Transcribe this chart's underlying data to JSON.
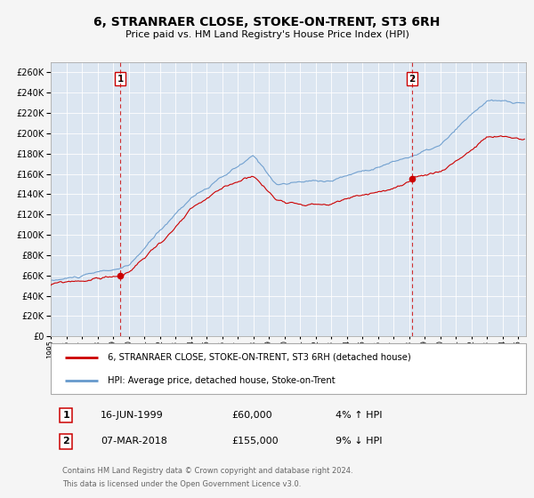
{
  "title_line1": "6, STRANRAER CLOSE, STOKE-ON-TRENT, ST3 6RH",
  "title_line2": "Price paid vs. HM Land Registry's House Price Index (HPI)",
  "ylim": [
    0,
    270000
  ],
  "xlim_start": 1995.0,
  "xlim_end": 2025.5,
  "ytick_values": [
    0,
    20000,
    40000,
    60000,
    80000,
    100000,
    120000,
    140000,
    160000,
    180000,
    200000,
    220000,
    240000,
    260000
  ],
  "ytick_labels": [
    "£0",
    "£20K",
    "£40K",
    "£60K",
    "£80K",
    "£100K",
    "£120K",
    "£140K",
    "£160K",
    "£180K",
    "£200K",
    "£220K",
    "£240K",
    "£260K"
  ],
  "transaction1_year": 1999.458,
  "transaction1_price": 60000,
  "transaction1_label": "1",
  "transaction2_year": 2018.175,
  "transaction2_price": 155000,
  "transaction2_label": "2",
  "red_line_color": "#cc0000",
  "blue_line_color": "#6699cc",
  "dashed_line_color": "#cc0000",
  "plot_bg_color": "#dce6f1",
  "grid_color": "#ffffff",
  "legend1_label": "6, STRANRAER CLOSE, STOKE-ON-TRENT, ST3 6RH (detached house)",
  "legend2_label": "HPI: Average price, detached house, Stoke-on-Trent",
  "footer_line1": "Contains HM Land Registry data © Crown copyright and database right 2024.",
  "footer_line2": "This data is licensed under the Open Government Licence v3.0.",
  "table_row1_num": "1",
  "table_row1_date": "16-JUN-1999",
  "table_row1_price": "£60,000",
  "table_row1_pct": "4% ↑ HPI",
  "table_row2_num": "2",
  "table_row2_date": "07-MAR-2018",
  "table_row2_price": "£155,000",
  "table_row2_pct": "9% ↓ HPI"
}
